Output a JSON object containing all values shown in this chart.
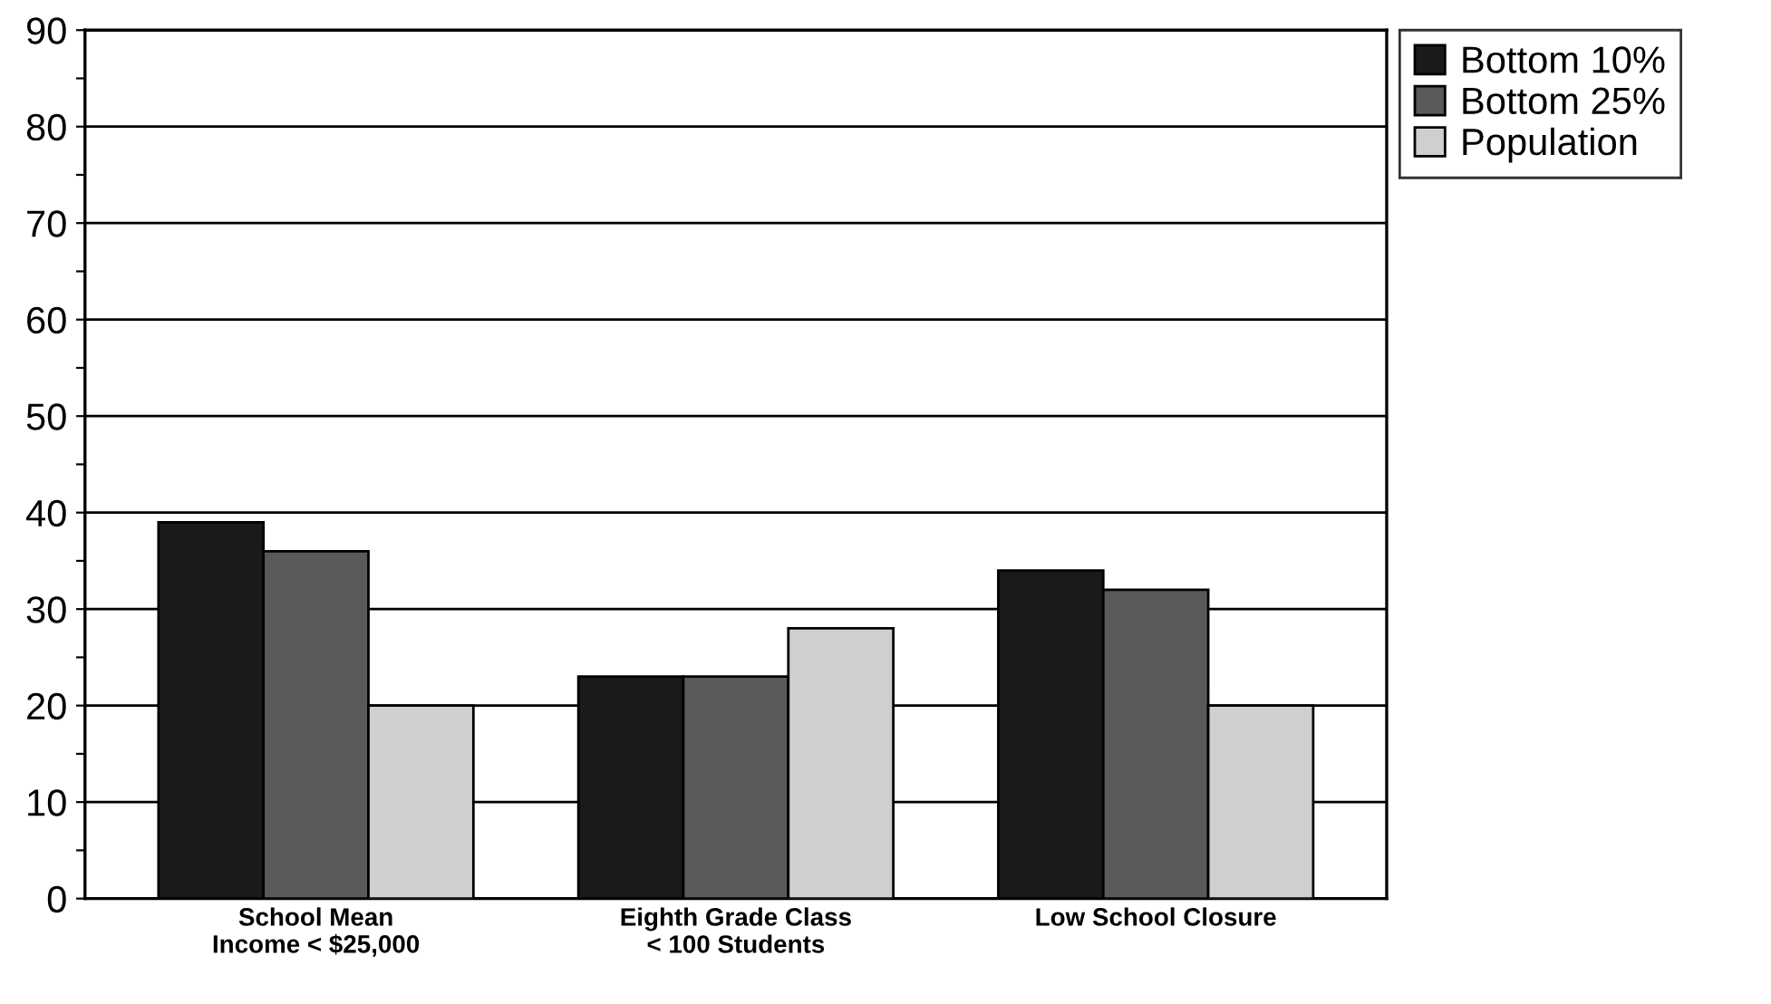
{
  "chart_data": {
    "type": "bar",
    "categories": [
      "School Mean\nIncome < $25,000",
      "Eighth Grade Class\n< 100 Students",
      "Low School Closure"
    ],
    "series": [
      {
        "name": "Bottom 10%",
        "color": "#1a1a1a",
        "values": [
          39,
          23,
          34
        ]
      },
      {
        "name": "Bottom 25%",
        "color": "#5a5a5a",
        "values": [
          36,
          23,
          32
        ]
      },
      {
        "name": "Population",
        "color": "#cfcfcf",
        "values": [
          20,
          28,
          20
        ]
      }
    ],
    "ylim": [
      0,
      90
    ],
    "yticks": [
      0,
      {
        "value": 5,
        "label": null
      },
      10,
      {
        "value": 15,
        "label": null
      },
      20,
      {
        "value": 25,
        "label": null
      },
      30,
      {
        "value": 35,
        "label": null
      },
      40,
      {
        "value": 45,
        "label": null
      },
      50,
      {
        "value": 55,
        "label": null
      },
      60,
      {
        "value": 65,
        "label": null
      },
      70,
      {
        "value": 75,
        "label": null
      },
      80,
      {
        "value": 85,
        "label": null
      },
      90
    ],
    "grid": "y",
    "legend": "top right"
  }
}
